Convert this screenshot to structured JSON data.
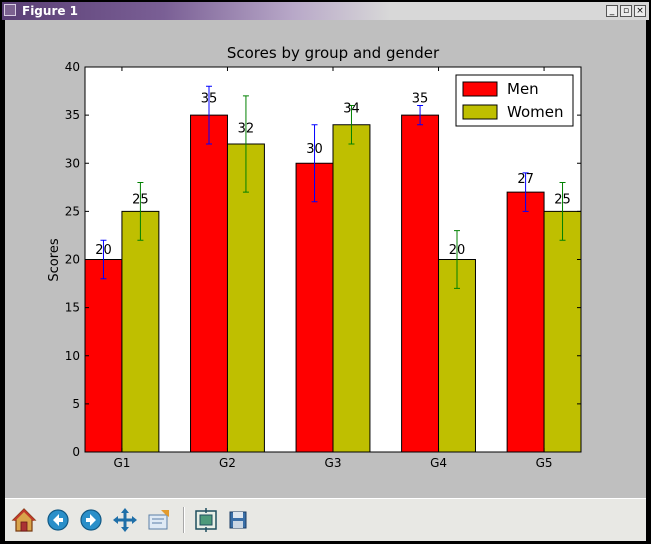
{
  "window": {
    "title": "Figure 1",
    "buttons": {
      "minimize": "_",
      "maximize": "▫",
      "close": "×"
    }
  },
  "toolbar": {
    "items": [
      {
        "name": "home-icon"
      },
      {
        "name": "back-icon"
      },
      {
        "name": "forward-icon"
      },
      {
        "name": "pan-icon"
      },
      {
        "name": "zoom-icon"
      },
      {
        "name": "subplots-icon"
      },
      {
        "name": "save-icon"
      }
    ]
  },
  "colors": {
    "men": "#ff0000",
    "women": "#bfbf00",
    "men_err": "#0000ff",
    "women_err": "#008000",
    "canvas": "#bfbfbf"
  },
  "chart_data": {
    "type": "bar",
    "title": "Scores by group and gender",
    "xlabel": "",
    "ylabel": "Scores",
    "categories": [
      "G1",
      "G2",
      "G3",
      "G4",
      "G5"
    ],
    "ylim": [
      0,
      40
    ],
    "yticks": [
      0,
      5,
      10,
      15,
      20,
      25,
      30,
      35,
      40
    ],
    "legend_position": "top-right",
    "grid": false,
    "series": [
      {
        "name": "Men",
        "values": [
          20,
          35,
          30,
          35,
          27
        ],
        "errors": [
          2,
          3,
          4,
          1,
          2
        ],
        "color": "#ff0000",
        "error_color": "#0000ff"
      },
      {
        "name": "Women",
        "values": [
          25,
          32,
          34,
          20,
          25
        ],
        "errors": [
          3,
          5,
          2,
          3,
          3
        ],
        "color": "#bfbf00",
        "error_color": "#008000"
      }
    ]
  }
}
